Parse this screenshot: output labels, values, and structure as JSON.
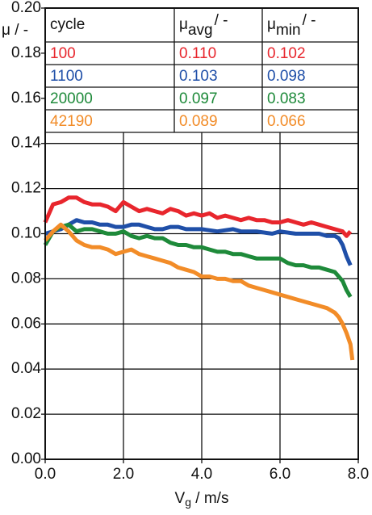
{
  "chart_data": {
    "type": "line",
    "y_label": "μ / -",
    "x_label": {
      "symbol": "V",
      "sub": "g",
      "unit": " / m/s"
    },
    "xlim": [
      0,
      8
    ],
    "ylim": [
      0,
      0.2
    ],
    "xticks": [
      {
        "value": 0,
        "label": "0.0"
      },
      {
        "value": 2,
        "label": "2.0"
      },
      {
        "value": 4,
        "label": "4.0"
      },
      {
        "value": 6,
        "label": "6.0"
      },
      {
        "value": 8,
        "label": "8.0"
      }
    ],
    "yticks": [
      {
        "value": 0,
        "label": "0.00"
      },
      {
        "value": 0.02,
        "label": "0.02"
      },
      {
        "value": 0.04,
        "label": "0.04"
      },
      {
        "value": 0.06,
        "label": "0.06"
      },
      {
        "value": 0.08,
        "label": "0.08"
      },
      {
        "value": 0.1,
        "label": "0.10"
      },
      {
        "value": 0.12,
        "label": "0.12"
      },
      {
        "value": 0.14,
        "label": "0.14"
      },
      {
        "value": 0.16,
        "label": "0.16"
      },
      {
        "value": 0.18,
        "label": "0.18"
      },
      {
        "value": 0.2,
        "label": "0.20"
      }
    ],
    "grid": true,
    "series": [
      {
        "name": "100",
        "color": "#e8262d",
        "x": [
          0,
          0.1,
          0.2,
          0.4,
          0.6,
          0.8,
          1.0,
          1.2,
          1.4,
          1.6,
          1.8,
          2.0,
          2.2,
          2.4,
          2.6,
          2.8,
          3.0,
          3.2,
          3.4,
          3.6,
          3.8,
          4.0,
          4.2,
          4.4,
          4.6,
          4.8,
          5.0,
          5.2,
          5.4,
          5.6,
          5.8,
          6.0,
          6.2,
          6.4,
          6.6,
          6.8,
          7.0,
          7.2,
          7.4,
          7.6,
          7.7,
          7.8
        ],
        "values": [
          0.105,
          0.109,
          0.113,
          0.114,
          0.116,
          0.116,
          0.114,
          0.113,
          0.113,
          0.112,
          0.11,
          0.114,
          0.112,
          0.11,
          0.111,
          0.11,
          0.109,
          0.111,
          0.11,
          0.108,
          0.109,
          0.108,
          0.109,
          0.107,
          0.108,
          0.107,
          0.106,
          0.107,
          0.106,
          0.106,
          0.105,
          0.105,
          0.106,
          0.105,
          0.104,
          0.105,
          0.104,
          0.103,
          0.102,
          0.101,
          0.099,
          0.101
        ]
      },
      {
        "name": "1100",
        "color": "#1f4fa8",
        "x": [
          0,
          0.2,
          0.4,
          0.6,
          0.8,
          1.0,
          1.2,
          1.4,
          1.6,
          1.8,
          2.0,
          2.2,
          2.4,
          2.6,
          2.8,
          3.0,
          3.2,
          3.4,
          3.6,
          3.8,
          4.0,
          4.4,
          4.8,
          5.0,
          5.4,
          5.8,
          6.0,
          6.4,
          6.8,
          7.0,
          7.2,
          7.4,
          7.5,
          7.6,
          7.7,
          7.8
        ],
        "values": [
          0.1,
          0.101,
          0.102,
          0.104,
          0.106,
          0.105,
          0.105,
          0.104,
          0.104,
          0.103,
          0.103,
          0.104,
          0.104,
          0.103,
          0.102,
          0.102,
          0.103,
          0.103,
          0.102,
          0.102,
          0.102,
          0.101,
          0.102,
          0.101,
          0.101,
          0.1,
          0.101,
          0.1,
          0.1,
          0.1,
          0.099,
          0.099,
          0.098,
          0.095,
          0.09,
          0.086
        ]
      },
      {
        "name": "20000",
        "color": "#1e8a3a",
        "x": [
          0,
          0.2,
          0.4,
          0.6,
          0.8,
          1.0,
          1.2,
          1.4,
          1.6,
          1.8,
          2.0,
          2.2,
          2.4,
          2.6,
          2.8,
          3.0,
          3.2,
          3.4,
          3.6,
          3.8,
          4.0,
          4.2,
          4.4,
          4.6,
          4.8,
          5.0,
          5.2,
          5.4,
          5.6,
          5.8,
          6.0,
          6.2,
          6.4,
          6.6,
          6.8,
          7.0,
          7.2,
          7.4,
          7.5,
          7.6,
          7.7,
          7.8
        ],
        "values": [
          0.095,
          0.101,
          0.103,
          0.104,
          0.101,
          0.102,
          0.102,
          0.101,
          0.1,
          0.1,
          0.101,
          0.099,
          0.098,
          0.099,
          0.098,
          0.098,
          0.096,
          0.095,
          0.095,
          0.094,
          0.094,
          0.093,
          0.092,
          0.092,
          0.091,
          0.091,
          0.09,
          0.089,
          0.089,
          0.089,
          0.089,
          0.087,
          0.086,
          0.086,
          0.085,
          0.085,
          0.084,
          0.083,
          0.081,
          0.079,
          0.075,
          0.072
        ]
      },
      {
        "name": "42190",
        "color": "#f28c28",
        "x": [
          0,
          0.2,
          0.4,
          0.6,
          0.8,
          1.0,
          1.2,
          1.4,
          1.6,
          1.8,
          2.0,
          2.2,
          2.4,
          2.6,
          2.8,
          3.0,
          3.2,
          3.4,
          3.6,
          3.8,
          4.0,
          4.2,
          4.4,
          4.6,
          4.8,
          5.0,
          5.2,
          5.4,
          5.6,
          5.8,
          6.0,
          6.2,
          6.4,
          6.6,
          6.8,
          7.0,
          7.2,
          7.4,
          7.5,
          7.6,
          7.7,
          7.8,
          7.85
        ],
        "values": [
          0.097,
          0.101,
          0.104,
          0.101,
          0.097,
          0.095,
          0.094,
          0.094,
          0.093,
          0.091,
          0.092,
          0.093,
          0.091,
          0.09,
          0.089,
          0.088,
          0.087,
          0.085,
          0.084,
          0.083,
          0.081,
          0.081,
          0.08,
          0.08,
          0.079,
          0.079,
          0.077,
          0.076,
          0.075,
          0.074,
          0.073,
          0.072,
          0.071,
          0.07,
          0.069,
          0.068,
          0.067,
          0.065,
          0.063,
          0.06,
          0.056,
          0.051,
          0.044
        ]
      }
    ],
    "table": {
      "columns": [
        "cycle",
        {
          "symbol": "μ",
          "sub": "avg",
          "unit": "/ -"
        },
        {
          "symbol": "μ",
          "sub": "min",
          "unit": "/ -"
        }
      ],
      "rows": [
        [
          "100",
          "0.110",
          "0.102"
        ],
        [
          "1100",
          "0.103",
          "0.098"
        ],
        [
          "20000",
          "0.097",
          "0.083"
        ],
        [
          "42190",
          "0.089",
          "0.066"
        ]
      ]
    }
  }
}
